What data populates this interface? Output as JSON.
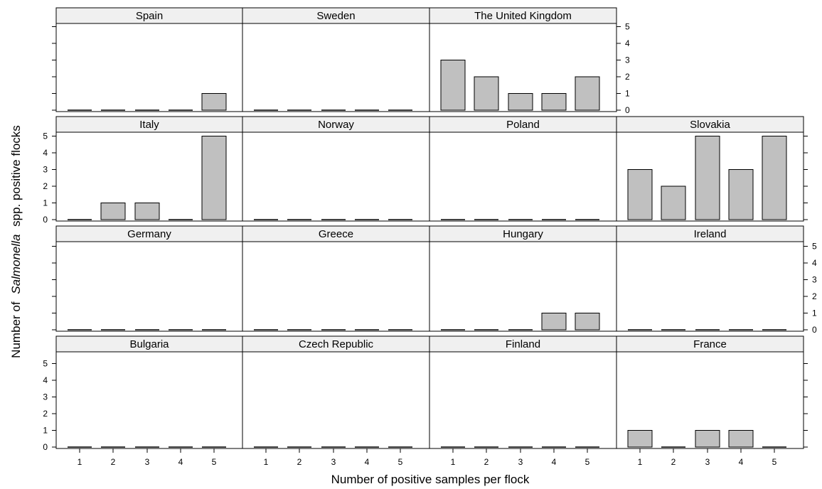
{
  "chart_data": {
    "type": "bar",
    "layout": "faceted-trellis",
    "xlabel": "Number of positive samples per flock",
    "ylabel": {
      "prefix": "Number of",
      "italic": "Salmonella",
      "suffix": "spp. positive flocks"
    },
    "categories": [
      "1",
      "2",
      "3",
      "4",
      "5"
    ],
    "ylim": [
      0,
      5
    ],
    "yticks": [
      "0",
      "1",
      "2",
      "3",
      "4",
      "5"
    ],
    "bar_color": "#c0c0c0",
    "strip_color": "#f0f0f0",
    "panels": [
      {
        "name": "Spain",
        "values": [
          0,
          0,
          0,
          0,
          1
        ]
      },
      {
        "name": "Sweden",
        "values": [
          0,
          0,
          0,
          0,
          0
        ]
      },
      {
        "name": "The United Kingdom",
        "values": [
          3,
          2,
          1,
          1,
          2
        ]
      },
      {
        "name": "Italy",
        "values": [
          0,
          1,
          1,
          0,
          5
        ]
      },
      {
        "name": "Norway",
        "values": [
          0,
          0,
          0,
          0,
          0
        ]
      },
      {
        "name": "Poland",
        "values": [
          0,
          0,
          0,
          0,
          0
        ]
      },
      {
        "name": "Slovakia",
        "values": [
          3,
          2,
          5,
          3,
          5
        ]
      },
      {
        "name": "Germany",
        "values": [
          0,
          0,
          0,
          0,
          0
        ]
      },
      {
        "name": "Greece",
        "values": [
          0,
          0,
          0,
          0,
          0
        ]
      },
      {
        "name": "Hungary",
        "values": [
          0,
          0,
          0,
          1,
          1
        ]
      },
      {
        "name": "Ireland",
        "values": [
          0,
          0,
          0,
          0,
          0
        ]
      },
      {
        "name": "Bulgaria",
        "values": [
          0,
          0,
          0,
          0,
          0
        ]
      },
      {
        "name": "Czech Republic",
        "values": [
          0,
          0,
          0,
          0,
          0
        ]
      },
      {
        "name": "Finland",
        "values": [
          0,
          0,
          0,
          0,
          0
        ]
      },
      {
        "name": "France",
        "values": [
          1,
          0,
          1,
          1,
          0
        ]
      }
    ]
  }
}
